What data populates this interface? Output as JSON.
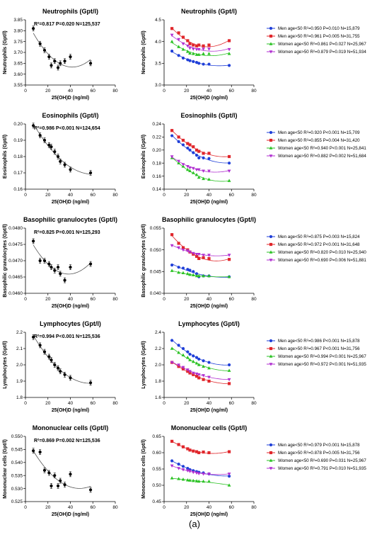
{
  "figure": {
    "caption": "(a)",
    "colors": {
      "blue": "#1f3fd8",
      "red": "#e0262b",
      "green": "#2bc224",
      "purple": "#b02fd0",
      "black": "#000000",
      "curve_gray": "#555555"
    }
  },
  "chart_data": [
    {
      "type": "scatter",
      "title": "Neutrophils (Gpt/l)",
      "xlabel": "25(OH)D (ng/ml)",
      "ylabel": "Neutrophils (Gpt/l)",
      "xlim": [
        0,
        80
      ],
      "ylim": [
        3.55,
        3.85
      ],
      "xticks": [
        "0",
        "20",
        "40",
        "60",
        "80"
      ],
      "yticks": [
        "3.55",
        "3.60",
        "3.65",
        "3.70",
        "3.75",
        "3.80",
        "3.85"
      ],
      "annotation": "R²=0.817 P=0.020 N=125,537",
      "series": [
        {
          "x": [
            7,
            13,
            17,
            21,
            23,
            26,
            29,
            31,
            35,
            40,
            58
          ],
          "y": [
            3.81,
            3.74,
            3.71,
            3.68,
            3.64,
            3.66,
            3.63,
            3.65,
            3.66,
            3.68,
            3.65
          ],
          "color": "black",
          "fit": true
        }
      ]
    },
    {
      "type": "scatter",
      "title": "Neutrophils (Gpt/l)",
      "xlabel": "25(OH)D (ng/ml)",
      "ylabel": "Neutrophils (Gpt/l)",
      "xlim": [
        0,
        80
      ],
      "ylim": [
        3.0,
        4.5
      ],
      "xticks": [
        "0",
        "20",
        "40",
        "60",
        "80"
      ],
      "yticks": [
        "3.0",
        "3.5",
        "4.0",
        "4.5"
      ],
      "legend_position": "right",
      "series": [
        {
          "name": "Men age<50 R²=0.950  P=0.010  N=15,879",
          "marker": "circle",
          "color": "blue",
          "x": [
            7,
            13,
            17,
            21,
            23,
            26,
            29,
            31,
            35,
            40,
            58
          ],
          "y": [
            3.78,
            3.68,
            3.62,
            3.58,
            3.56,
            3.54,
            3.52,
            3.5,
            3.48,
            3.48,
            3.45
          ]
        },
        {
          "name": "Men age>50 R²=0.961  P=0.005  N=31,755",
          "marker": "square",
          "color": "red",
          "x": [
            7,
            13,
            17,
            21,
            23,
            26,
            29,
            31,
            35,
            40,
            58
          ],
          "y": [
            4.3,
            4.2,
            4.1,
            4.02,
            3.95,
            3.92,
            3.9,
            3.92,
            3.9,
            3.92,
            4.02
          ]
        },
        {
          "name": "Women age<50 R²=0.861  P=0.027  N=25,967",
          "marker": "triangle",
          "color": "green",
          "x": [
            7,
            13,
            17,
            21,
            23,
            26,
            29,
            31,
            35,
            40,
            58
          ],
          "y": [
            4.0,
            3.88,
            3.82,
            3.77,
            3.73,
            3.72,
            3.7,
            3.7,
            3.72,
            3.72,
            3.72
          ]
        },
        {
          "name": "Women age>50 R²=0.879  P=0.019  N=51,934",
          "marker": "triangle-down",
          "color": "purple",
          "x": [
            7,
            13,
            17,
            21,
            23,
            26,
            29,
            31,
            35,
            40,
            58
          ],
          "y": [
            4.15,
            4.05,
            3.95,
            3.9,
            3.85,
            3.83,
            3.82,
            3.82,
            3.83,
            3.83,
            3.82
          ]
        }
      ]
    },
    {
      "type": "scatter",
      "title": "Eosinophils (Gpt/l)",
      "xlabel": "25(OH)D (ng/ml)",
      "ylabel": "Eosinophils (Gpt/l)",
      "xlim": [
        0,
        80
      ],
      "ylim": [
        0.16,
        0.2
      ],
      "xticks": [
        "0",
        "20",
        "40",
        "60",
        "80"
      ],
      "yticks": [
        "0.16",
        "0.17",
        "0.18",
        "0.19",
        "0.20"
      ],
      "annotation": "R²=0.986 P<0.001 N=124,654",
      "series": [
        {
          "x": [
            7,
            13,
            17,
            21,
            23,
            26,
            29,
            31,
            35,
            40,
            58
          ],
          "y": [
            0.199,
            0.193,
            0.19,
            0.187,
            0.186,
            0.183,
            0.18,
            0.177,
            0.175,
            0.172,
            0.17
          ],
          "color": "black",
          "fit": true
        }
      ]
    },
    {
      "type": "scatter",
      "title": "Eosinophils (Gpt/l)",
      "xlabel": "25(OH)D (ng/ml)",
      "ylabel": "Eosinophils (Gpt/l)",
      "xlim": [
        0,
        80
      ],
      "ylim": [
        0.14,
        0.24
      ],
      "xticks": [
        "0",
        "20",
        "40",
        "60",
        "80"
      ],
      "yticks": [
        "0.14",
        "0.16",
        "0.18",
        "0.20",
        "0.22",
        "0.24"
      ],
      "legend_position": "right",
      "series": [
        {
          "name": "Men age<50 R²=0.920  P<0.001 N=15,709",
          "marker": "circle",
          "color": "blue",
          "x": [
            7,
            13,
            17,
            21,
            23,
            26,
            29,
            31,
            35,
            40,
            58
          ],
          "y": [
            0.222,
            0.213,
            0.208,
            0.203,
            0.2,
            0.196,
            0.192,
            0.188,
            0.188,
            0.187,
            0.18
          ]
        },
        {
          "name": "Men age>50 R²=0.855  P=0.004 N=31,420",
          "marker": "square",
          "color": "red",
          "x": [
            7,
            13,
            17,
            21,
            23,
            26,
            29,
            31,
            35,
            40,
            58
          ],
          "y": [
            0.23,
            0.22,
            0.215,
            0.21,
            0.208,
            0.205,
            0.2,
            0.198,
            0.195,
            0.195,
            0.19
          ]
        },
        {
          "name": "Women age<50 R²=0.940  P<0.001 N=25,841",
          "marker": "triangle",
          "color": "green",
          "x": [
            7,
            13,
            17,
            21,
            23,
            26,
            29,
            31,
            35,
            40,
            58
          ],
          "y": [
            0.188,
            0.18,
            0.175,
            0.17,
            0.168,
            0.165,
            0.162,
            0.158,
            0.156,
            0.155,
            0.153
          ]
        },
        {
          "name": "Women age>50 R²=0.882  P=0.002 N=51,684",
          "marker": "triangle-down",
          "color": "purple",
          "x": [
            7,
            13,
            17,
            21,
            23,
            26,
            29,
            31,
            35,
            40,
            58
          ],
          "y": [
            0.19,
            0.183,
            0.178,
            0.175,
            0.173,
            0.172,
            0.17,
            0.17,
            0.168,
            0.168,
            0.168
          ]
        }
      ]
    },
    {
      "type": "scatter",
      "title": "Basophilic granulocytes (Gpt/l)",
      "xlabel": "25(OH)D (ng/ml)",
      "ylabel": "Basophilic granulocytes (Gpt/l)",
      "xlim": [
        0,
        80
      ],
      "ylim": [
        0.046,
        0.048
      ],
      "xticks": [
        "0",
        "20",
        "40",
        "60",
        "80"
      ],
      "yticks": [
        "0.0460",
        "0.0465",
        "0.0470",
        "0.0475",
        "0.0480"
      ],
      "annotation": "R²=0.825 P=0.001 N=125,293",
      "series": [
        {
          "x": [
            7,
            13,
            17,
            21,
            23,
            26,
            29,
            31,
            35,
            40,
            58
          ],
          "y": [
            0.0476,
            0.047,
            0.047,
            0.0469,
            0.0468,
            0.0467,
            0.0468,
            0.0466,
            0.0464,
            0.0468,
            0.0469
          ],
          "color": "black",
          "fit": true
        }
      ]
    },
    {
      "type": "scatter",
      "title": "Basophilic granulocytes (Gpt/l)",
      "xlabel": "25(OH)D (ng/ml)",
      "ylabel": "Basophilic granulocytes (Gpt/l)",
      "xlim": [
        0,
        80
      ],
      "ylim": [
        0.04,
        0.055
      ],
      "xticks": [
        "0",
        "20",
        "40",
        "60",
        "80"
      ],
      "yticks": [
        "0.040",
        "0.045",
        "0.050",
        "0.055"
      ],
      "legend_position": "right",
      "series": [
        {
          "name": "Men age<50 R²=0.875  P=0.003 N=15,824",
          "marker": "circle",
          "color": "blue",
          "x": [
            7,
            13,
            17,
            21,
            23,
            26,
            29,
            31,
            35,
            40,
            58
          ],
          "y": [
            0.0465,
            0.046,
            0.0458,
            0.0455,
            0.0453,
            0.045,
            0.0445,
            0.0438,
            0.044,
            0.044,
            0.0438
          ]
        },
        {
          "name": "Men age>50 R²=0.972  P<0.001 N=31,648",
          "marker": "square",
          "color": "red",
          "x": [
            7,
            13,
            17,
            21,
            23,
            26,
            29,
            31,
            35,
            40,
            58
          ],
          "y": [
            0.0535,
            0.0515,
            0.0505,
            0.05,
            0.0495,
            0.049,
            0.0485,
            0.048,
            0.0482,
            0.048,
            0.0478
          ]
        },
        {
          "name": "Women age<50 R²=0.820  P=0.010 N=25,940",
          "marker": "triangle",
          "color": "green",
          "x": [
            7,
            13,
            17,
            21,
            23,
            26,
            29,
            31,
            35,
            40,
            58
          ],
          "y": [
            0.0452,
            0.0448,
            0.0447,
            0.0445,
            0.0443,
            0.0442,
            0.044,
            0.044,
            0.044,
            0.044,
            0.0438
          ]
        },
        {
          "name": "Women age>50 R²=0.690  P=0.006 N=51,881",
          "marker": "triangle-down",
          "color": "purple",
          "x": [
            7,
            13,
            17,
            21,
            23,
            26,
            29,
            31,
            35,
            40,
            58
          ],
          "y": [
            0.051,
            0.0505,
            0.05,
            0.0498,
            0.0495,
            0.0492,
            0.049,
            0.049,
            0.0488,
            0.0488,
            0.0488
          ]
        }
      ]
    },
    {
      "type": "scatter",
      "title": "Lymphocytes (Gpt/l)",
      "xlabel": "25(OH)D (ng/ml)",
      "ylabel": "Lymphocytes (Gpt/l)",
      "xlim": [
        0,
        80
      ],
      "ylim": [
        1.8,
        2.2
      ],
      "xticks": [
        "0",
        "20",
        "40",
        "60",
        "80"
      ],
      "yticks": [
        "1.8",
        "1.9",
        "2.0",
        "2.1",
        "2.2"
      ],
      "annotation": "R²=0.994 P<0.001 N=125,536",
      "series": [
        {
          "x": [
            7,
            13,
            17,
            21,
            23,
            26,
            29,
            31,
            35,
            40,
            58
          ],
          "y": [
            2.17,
            2.12,
            2.08,
            2.05,
            2.03,
            2.0,
            1.98,
            1.96,
            1.94,
            1.92,
            1.89
          ],
          "color": "black",
          "fit": true
        }
      ]
    },
    {
      "type": "scatter",
      "title": "Lymphocytes (Gpt/l)",
      "xlabel": "25(OH)D (ng/ml)",
      "ylabel": "Lymphocytes (Gpt/l)",
      "xlim": [
        0,
        80
      ],
      "ylim": [
        1.6,
        2.4
      ],
      "xticks": [
        "0",
        "20",
        "40",
        "60",
        "80"
      ],
      "yticks": [
        "1.6",
        "1.8",
        "2.0",
        "2.2",
        "2.4"
      ],
      "legend_position": "right",
      "series": [
        {
          "name": "Men age<50 R²=0.986  P<0.001 N=15,878",
          "marker": "circle",
          "color": "blue",
          "x": [
            7,
            13,
            17,
            21,
            23,
            26,
            29,
            31,
            35,
            40,
            58
          ],
          "y": [
            2.3,
            2.24,
            2.2,
            2.16,
            2.13,
            2.11,
            2.09,
            2.07,
            2.05,
            2.03,
            2.0
          ]
        },
        {
          "name": "Men age>50 R²=0.967  P<0.001 N=31,756",
          "marker": "square",
          "color": "red",
          "x": [
            7,
            13,
            17,
            21,
            23,
            26,
            29,
            31,
            35,
            40,
            58
          ],
          "y": [
            2.03,
            1.98,
            1.95,
            1.92,
            1.9,
            1.88,
            1.86,
            1.84,
            1.82,
            1.8,
            1.77
          ]
        },
        {
          "name": "Women age<50 R²=0.994  P<0.001 N=25,967",
          "marker": "triangle",
          "color": "green",
          "x": [
            7,
            13,
            17,
            21,
            23,
            26,
            29,
            31,
            35,
            40,
            58
          ],
          "y": [
            2.2,
            2.15,
            2.12,
            2.09,
            2.06,
            2.04,
            2.02,
            2.0,
            1.98,
            1.96,
            1.93
          ]
        },
        {
          "name": "Women age>50 R²=0.972  P<0.001 N=51,935",
          "marker": "triangle-down",
          "color": "purple",
          "x": [
            7,
            13,
            17,
            21,
            23,
            26,
            29,
            31,
            35,
            40,
            58
          ],
          "y": [
            2.03,
            2.0,
            1.97,
            1.94,
            1.92,
            1.9,
            1.89,
            1.88,
            1.87,
            1.85,
            1.82
          ]
        }
      ]
    },
    {
      "type": "scatter",
      "title": "Mononuclear cells (Gpt/l)",
      "xlabel": "25(OH)D (ng/ml)",
      "ylabel": "Mononuclear cells (Gpt/l)",
      "xlim": [
        0,
        80
      ],
      "ylim": [
        0.525,
        0.55
      ],
      "xticks": [
        "0",
        "20",
        "40",
        "60",
        "80"
      ],
      "yticks": [
        "0.525",
        "0.530",
        "0.535",
        "0.540",
        "0.545",
        "0.550"
      ],
      "annotation": "R²=0.869 P=0.002 N=125,536",
      "series": [
        {
          "x": [
            7,
            13,
            17,
            21,
            23,
            26,
            29,
            31,
            35,
            40,
            58
          ],
          "y": [
            0.5445,
            0.544,
            0.537,
            0.536,
            0.531,
            0.535,
            0.531,
            0.533,
            0.5315,
            0.5355,
            0.5295
          ],
          "color": "black",
          "fit": true
        }
      ]
    },
    {
      "type": "scatter",
      "title": "Mononuclear cells (Gpt/l)",
      "xlabel": "25(OH)D (ng/ml)",
      "ylabel": "Mononuclear cells (Gpt/l)",
      "xlim": [
        0,
        80
      ],
      "ylim": [
        0.45,
        0.65
      ],
      "xticks": [
        "0",
        "20",
        "40",
        "60",
        "80"
      ],
      "yticks": [
        "0.45",
        "0.50",
        "0.55",
        "0.60",
        "0.65"
      ],
      "legend_position": "right",
      "series": [
        {
          "name": "Men age<50 R²=0.979  P<0.001 N=15,878",
          "marker": "circle",
          "color": "blue",
          "x": [
            7,
            13,
            17,
            21,
            23,
            26,
            29,
            31,
            35,
            40,
            58
          ],
          "y": [
            0.575,
            0.565,
            0.558,
            0.552,
            0.548,
            0.545,
            0.542,
            0.54,
            0.538,
            0.535,
            0.528
          ]
        },
        {
          "name": "Men age>50 R²=0.878  P=0.005 N=31,756",
          "marker": "square",
          "color": "red",
          "x": [
            7,
            13,
            17,
            21,
            23,
            26,
            29,
            31,
            35,
            40,
            58
          ],
          "y": [
            0.635,
            0.625,
            0.618,
            0.612,
            0.608,
            0.605,
            0.603,
            0.6,
            0.602,
            0.6,
            0.603
          ]
        },
        {
          "name": "Women age<50 R²=0.690  P=0.031 N=25,967",
          "marker": "triangle",
          "color": "green",
          "x": [
            7,
            13,
            17,
            21,
            23,
            26,
            29,
            31,
            35,
            40,
            58
          ],
          "y": [
            0.522,
            0.52,
            0.518,
            0.516,
            0.515,
            0.514,
            0.513,
            0.512,
            0.512,
            0.512,
            0.5
          ]
        },
        {
          "name": "Women age>50 R²=0.791  P=0.010 N=51,935",
          "marker": "triangle-down",
          "color": "purple",
          "x": [
            7,
            13,
            17,
            21,
            23,
            26,
            29,
            31,
            35,
            40,
            58
          ],
          "y": [
            0.56,
            0.552,
            0.548,
            0.545,
            0.543,
            0.54,
            0.538,
            0.536,
            0.535,
            0.535,
            0.535
          ]
        }
      ]
    }
  ]
}
